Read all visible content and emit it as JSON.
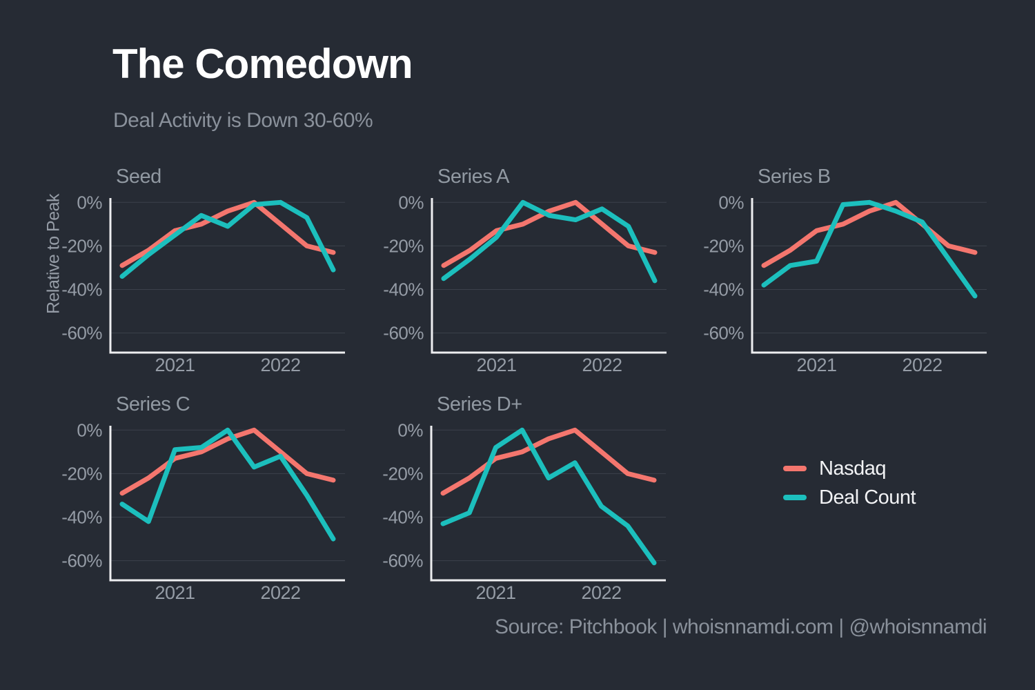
{
  "colors": {
    "background": "#262b34",
    "title_text": "#ffffff",
    "subtitle_text": "#8a919b",
    "panel_title_text": "#9199a2",
    "tick_text": "#959ca6",
    "grid": "#3c414b",
    "axis": "#edeef0",
    "legend_text": "#f2f3f5",
    "source_text": "#8a919b",
    "nasdaq": "#f4766e",
    "deal_count": "#1cbfbd"
  },
  "chart_data": {
    "type": "line",
    "title": "The Comedown",
    "subtitle": "Deal Activity is Down 30-60%",
    "ylabel": "Relative to Peak",
    "source": "Source: Pitchbook | whoisnnamdi.com | @whoisnnamdi",
    "grid": "horizontal",
    "ylim": [
      -69,
      2
    ],
    "y_ticks": [
      0,
      -20,
      -40,
      -60
    ],
    "y_tick_labels": [
      "0%",
      "-20%",
      "-40%",
      "-60%"
    ],
    "x_tick_labels": [
      "2021",
      "2022"
    ],
    "x_tick_indices": [
      2,
      6
    ],
    "legend": {
      "position": "right-middle",
      "entries": [
        {
          "label": "Nasdaq",
          "color": "#f4766e"
        },
        {
          "label": "Deal Count",
          "color": "#1cbfbd"
        }
      ]
    },
    "panels": [
      {
        "title": "Seed",
        "series": [
          {
            "name": "Nasdaq",
            "color": "#f4766e",
            "values": [
              -29,
              -22,
              -13,
              -10,
              -4,
              0,
              -10,
              -20,
              -23
            ]
          },
          {
            "name": "Deal Count",
            "color": "#1cbfbd",
            "values": [
              -34,
              -24,
              -15,
              -6,
              -11,
              -1,
              0,
              -7,
              -31
            ]
          }
        ]
      },
      {
        "title": "Series A",
        "series": [
          {
            "name": "Nasdaq",
            "color": "#f4766e",
            "values": [
              -29,
              -22,
              -13,
              -10,
              -4,
              0,
              -10,
              -20,
              -23
            ]
          },
          {
            "name": "Deal Count",
            "color": "#1cbfbd",
            "values": [
              -35,
              -26,
              -16,
              0,
              -6,
              -8,
              -3,
              -11,
              -36
            ]
          }
        ]
      },
      {
        "title": "Series B",
        "series": [
          {
            "name": "Nasdaq",
            "color": "#f4766e",
            "values": [
              -29,
              -22,
              -13,
              -10,
              -4,
              0,
              -10,
              -20,
              -23
            ]
          },
          {
            "name": "Deal Count",
            "color": "#1cbfbd",
            "values": [
              -38,
              -29,
              -27,
              -1,
              0,
              -4,
              -9,
              -26,
              -43
            ]
          }
        ]
      },
      {
        "title": "Series C",
        "series": [
          {
            "name": "Nasdaq",
            "color": "#f4766e",
            "values": [
              -29,
              -22,
              -13,
              -10,
              -4,
              0,
              -10,
              -20,
              -23
            ]
          },
          {
            "name": "Deal Count",
            "color": "#1cbfbd",
            "values": [
              -34,
              -42,
              -9,
              -8,
              0,
              -17,
              -12,
              -30,
              -50
            ]
          }
        ]
      },
      {
        "title": "Series D+",
        "series": [
          {
            "name": "Nasdaq",
            "color": "#f4766e",
            "values": [
              -29,
              -22,
              -13,
              -10,
              -4,
              0,
              -10,
              -20,
              -23
            ]
          },
          {
            "name": "Deal Count",
            "color": "#1cbfbd",
            "values": [
              -43,
              -38,
              -8,
              0,
              -22,
              -15,
              -35,
              -44,
              -61
            ]
          }
        ]
      }
    ]
  }
}
